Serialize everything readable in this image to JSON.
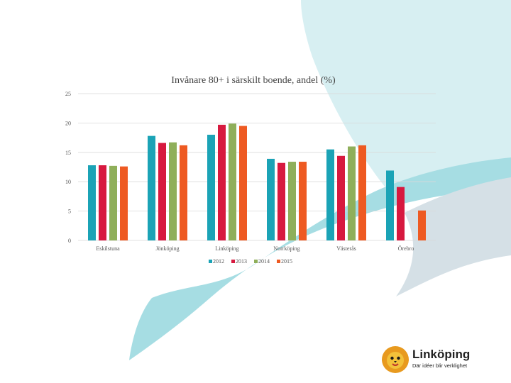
{
  "colors": {
    "series_2012": "#1ba3b6",
    "series_2013": "#d7193f",
    "series_2014": "#8faf5a",
    "series_2015": "#ee5a22",
    "background_shape_light": "#d7eff2",
    "background_shape_teal": "#a6dde3",
    "background_shape_gray": "#d5e0e6"
  },
  "chart_data": {
    "type": "bar",
    "title": "Invånare 80+ i särskilt boende, andel (%)",
    "categories": [
      "Eskilstuna",
      "Jönköping",
      "Linköping",
      "Norrköping",
      "Västerås",
      "Örebro"
    ],
    "series": [
      {
        "name": "2012",
        "values": [
          12.8,
          17.8,
          18.0,
          13.9,
          15.5,
          11.9
        ]
      },
      {
        "name": "2013",
        "values": [
          12.8,
          16.6,
          19.7,
          13.2,
          14.4,
          9.1
        ]
      },
      {
        "name": "2014",
        "values": [
          12.7,
          16.7,
          19.9,
          13.4,
          16.0,
          null
        ]
      },
      {
        "name": "2015",
        "values": [
          12.6,
          16.2,
          19.5,
          13.4,
          16.2,
          5.1
        ]
      }
    ],
    "ylim": [
      0,
      25
    ],
    "yticks": [
      0,
      5,
      10,
      15,
      20,
      25
    ],
    "grid": true,
    "legend_position": "bottom"
  },
  "logo": {
    "name": "Linköping",
    "tagline": "Där idéer blir verklighet"
  }
}
